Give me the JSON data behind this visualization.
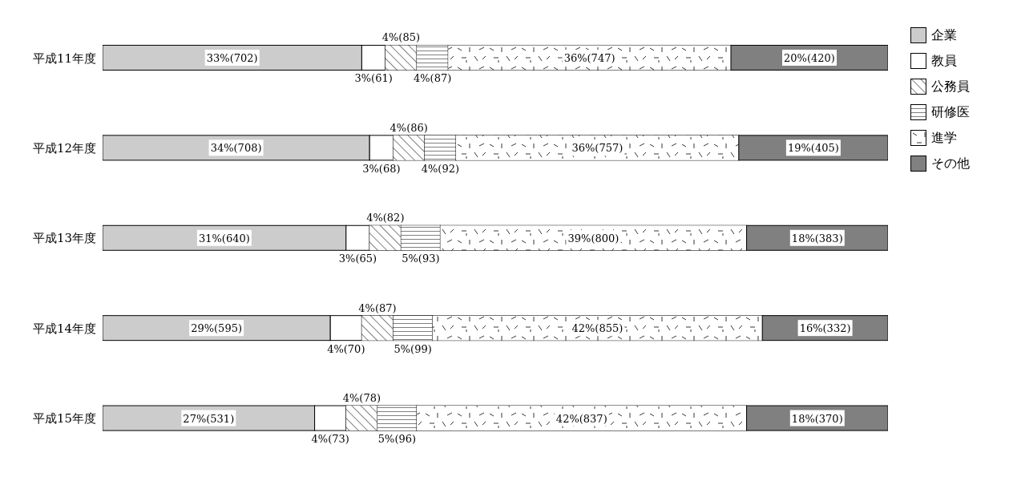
{
  "chart_data": {
    "type": "bar",
    "orientation": "horizontal",
    "stacked": true,
    "categories": [
      "平成11年度",
      "平成12年度",
      "平成13年度",
      "平成14年度",
      "平成15年度"
    ],
    "xlim": [
      0,
      100
    ],
    "tick_labels": "y",
    "legend": "top right",
    "grid": false,
    "series": [
      {
        "name": "企業",
        "color": "#cccccc",
        "values": [
          33,
          34,
          31,
          29,
          27
        ],
        "value_labels": [
          "33%(702)",
          "34%(708)",
          "31%(640)",
          "29%(595)",
          "27%(531)"
        ]
      },
      {
        "name": "教員",
        "color": "#ffffff",
        "values": [
          3,
          3,
          3,
          4,
          4
        ],
        "value_labels": [
          "3%(61)",
          "3%(68)",
          "3%(65)",
          "4%(70)",
          "4%(73)"
        ]
      },
      {
        "name": "公務員",
        "color": "#ffffff",
        "values": [
          4,
          4,
          4,
          4,
          4
        ],
        "value_labels": [
          "4%(85)",
          "4%(86)",
          "4%(82)",
          "4%(87)",
          "4%(78)"
        ]
      },
      {
        "name": "研修医",
        "color": "#ffffff",
        "values": [
          4,
          4,
          5,
          5,
          5
        ],
        "value_labels": [
          "4%(87)",
          "4%(92)",
          "5%(93)",
          "5%(99)",
          "5%(96)"
        ]
      },
      {
        "name": "進学",
        "color": "#ffffff",
        "values": [
          36,
          36,
          39,
          42,
          42
        ],
        "value_labels": [
          "36%(747)",
          "36%(757)",
          "39%(800)",
          "42%(855)",
          "42%(837)"
        ]
      },
      {
        "name": "その他",
        "color": "#808080",
        "values": [
          20,
          19,
          18,
          16,
          18
        ],
        "value_labels": [
          "20%(420)",
          "19%(405)",
          "18%(383)",
          "16%(332)",
          "18%(370)"
        ]
      }
    ]
  }
}
